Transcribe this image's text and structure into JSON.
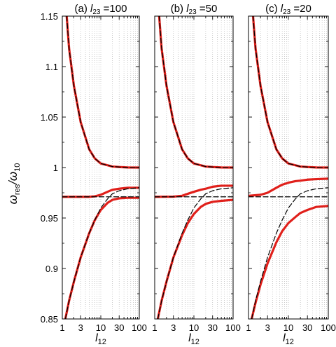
{
  "chart_data": {
    "type": "line",
    "ylabel": {
      "main": "ω",
      "main_sub": "res",
      "sep": "/ω",
      "denom_sub": "10"
    },
    "xlabel": {
      "main": "l",
      "sub": "12"
    },
    "xscale": "log",
    "xlim": [
      1,
      100
    ],
    "ylim": [
      0.85,
      1.15
    ],
    "xticks": [
      1,
      3,
      10,
      30,
      100
    ],
    "xtick_labels": [
      "1",
      "3",
      "10",
      "30",
      "100"
    ],
    "yticks": [
      0.85,
      0.9,
      0.95,
      1.0,
      1.05,
      1.1,
      1.15
    ],
    "ytick_labels": [
      "0.85",
      "0.9",
      "0.95",
      "1",
      "1.05",
      "1.1",
      "1.15"
    ],
    "grid": "vertical dotted at log ticks",
    "series_styles": {
      "full_model": "#e0201b",
      "approximation": "#000000"
    },
    "panels": [
      {
        "title": {
          "prefix": "(a) ",
          "var": "l",
          "sub": "23",
          "suffix": " =100"
        },
        "series": [
          {
            "style": "full_model",
            "branch": "upper",
            "x": [
              1.3,
              1.5,
              2,
              3,
              5,
              7,
              10,
              20,
              30,
              50,
              100
            ],
            "y": [
              1.15,
              1.118,
              1.081,
              1.045,
              1.018,
              1.009,
              1.004,
              1.001,
              1.0005,
              1.0001,
              1.0
            ]
          },
          {
            "style": "full_model",
            "branch": "middle",
            "x": [
              1,
              3,
              5,
              7,
              10,
              15,
              20,
              30,
              50,
              100
            ],
            "y": [
              0.971,
              0.971,
              0.971,
              0.9715,
              0.973,
              0.976,
              0.978,
              0.979,
              0.98,
              0.98
            ]
          },
          {
            "style": "full_model",
            "branch": "lower",
            "x": [
              1.2,
              1.5,
              2,
              3,
              5,
              7,
              10,
              15,
              20,
              30,
              50,
              100
            ],
            "y": [
              0.85,
              0.868,
              0.887,
              0.911,
              0.935,
              0.948,
              0.958,
              0.965,
              0.968,
              0.9695,
              0.97,
              0.97
            ]
          },
          {
            "style": "approximation",
            "branch": "upper",
            "x": [
              1.3,
              1.5,
              2,
              3,
              5,
              7,
              10,
              20,
              30,
              50,
              100
            ],
            "y": [
              1.15,
              1.118,
              1.081,
              1.045,
              1.018,
              1.009,
              1.004,
              1.001,
              1.0005,
              1.0001,
              1.0
            ]
          },
          {
            "style": "approximation",
            "branch": "coupled",
            "x": [
              1.2,
              1.5,
              2,
              3,
              5,
              7,
              10,
              15,
              20,
              30,
              50,
              100
            ],
            "y": [
              0.85,
              0.868,
              0.887,
              0.911,
              0.935,
              0.948,
              0.96,
              0.969,
              0.974,
              0.977,
              0.979,
              0.98
            ]
          },
          {
            "style": "approximation",
            "branch": "flat",
            "x": [
              1,
              100
            ],
            "y": [
              0.971,
              0.971
            ]
          }
        ]
      },
      {
        "title": {
          "prefix": "(b) ",
          "var": "l",
          "sub": "23",
          "suffix": " =50"
        },
        "series": [
          {
            "style": "full_model",
            "branch": "upper",
            "x": [
              1.3,
              1.5,
              2,
              3,
              5,
              7,
              10,
              20,
              30,
              50,
              100
            ],
            "y": [
              1.15,
              1.118,
              1.081,
              1.045,
              1.018,
              1.009,
              1.004,
              1.001,
              1.0005,
              1.0001,
              1.0
            ]
          },
          {
            "style": "full_model",
            "branch": "middle",
            "x": [
              1,
              3,
              5,
              7,
              10,
              15,
              20,
              30,
              50,
              100
            ],
            "y": [
              0.971,
              0.9712,
              0.972,
              0.974,
              0.976,
              0.978,
              0.979,
              0.981,
              0.982,
              0.982
            ]
          },
          {
            "style": "full_model",
            "branch": "lower",
            "x": [
              1.2,
              1.5,
              2,
              3,
              5,
              7,
              10,
              15,
              20,
              30,
              50,
              100
            ],
            "y": [
              0.85,
              0.868,
              0.887,
              0.911,
              0.933,
              0.945,
              0.954,
              0.961,
              0.964,
              0.966,
              0.967,
              0.968
            ]
          },
          {
            "style": "approximation",
            "branch": "upper",
            "x": [
              1.3,
              1.5,
              2,
              3,
              5,
              7,
              10,
              20,
              30,
              50,
              100
            ],
            "y": [
              1.15,
              1.118,
              1.081,
              1.045,
              1.018,
              1.009,
              1.004,
              1.001,
              1.0005,
              1.0001,
              1.0
            ]
          },
          {
            "style": "approximation",
            "branch": "coupled",
            "x": [
              1.2,
              1.5,
              2,
              3,
              5,
              7,
              10,
              15,
              20,
              30,
              50,
              100
            ],
            "y": [
              0.85,
              0.868,
              0.887,
              0.911,
              0.935,
              0.948,
              0.96,
              0.969,
              0.974,
              0.977,
              0.979,
              0.98
            ]
          },
          {
            "style": "approximation",
            "branch": "flat",
            "x": [
              1,
              100
            ],
            "y": [
              0.971,
              0.971
            ]
          }
        ]
      },
      {
        "title": {
          "prefix": "(c) ",
          "var": "l",
          "sub": "23",
          "suffix": " =20"
        },
        "series": [
          {
            "style": "full_model",
            "branch": "upper",
            "x": [
              1.3,
              1.5,
              2,
              3,
              5,
              7,
              10,
              20,
              30,
              50,
              100
            ],
            "y": [
              1.15,
              1.118,
              1.081,
              1.045,
              1.018,
              1.009,
              1.004,
              1.001,
              1.0005,
              1.0001,
              1.0
            ]
          },
          {
            "style": "full_model",
            "branch": "middle",
            "x": [
              1,
              2,
              3,
              5,
              7,
              10,
              15,
              20,
              30,
              50,
              100
            ],
            "y": [
              0.972,
              0.973,
              0.975,
              0.98,
              0.983,
              0.985,
              0.9865,
              0.987,
              0.988,
              0.9885,
              0.989
            ]
          },
          {
            "style": "full_model",
            "branch": "lower",
            "x": [
              1.2,
              1.5,
              2,
              3,
              5,
              7,
              10,
              15,
              20,
              30,
              50,
              100
            ],
            "y": [
              0.85,
              0.866,
              0.884,
              0.905,
              0.926,
              0.937,
              0.945,
              0.951,
              0.955,
              0.958,
              0.961,
              0.962
            ]
          },
          {
            "style": "approximation",
            "branch": "upper",
            "x": [
              1.3,
              1.5,
              2,
              3,
              5,
              7,
              10,
              20,
              30,
              50,
              100
            ],
            "y": [
              1.15,
              1.118,
              1.081,
              1.045,
              1.018,
              1.009,
              1.004,
              1.001,
              1.0005,
              1.0001,
              1.0
            ]
          },
          {
            "style": "approximation",
            "branch": "coupled",
            "x": [
              1.2,
              1.5,
              2,
              3,
              5,
              7,
              10,
              15,
              20,
              30,
              50,
              100
            ],
            "y": [
              0.85,
              0.868,
              0.887,
              0.911,
              0.935,
              0.948,
              0.96,
              0.969,
              0.974,
              0.977,
              0.979,
              0.98
            ]
          },
          {
            "style": "approximation",
            "branch": "flat",
            "x": [
              1,
              100
            ],
            "y": [
              0.971,
              0.971
            ]
          }
        ]
      }
    ]
  }
}
